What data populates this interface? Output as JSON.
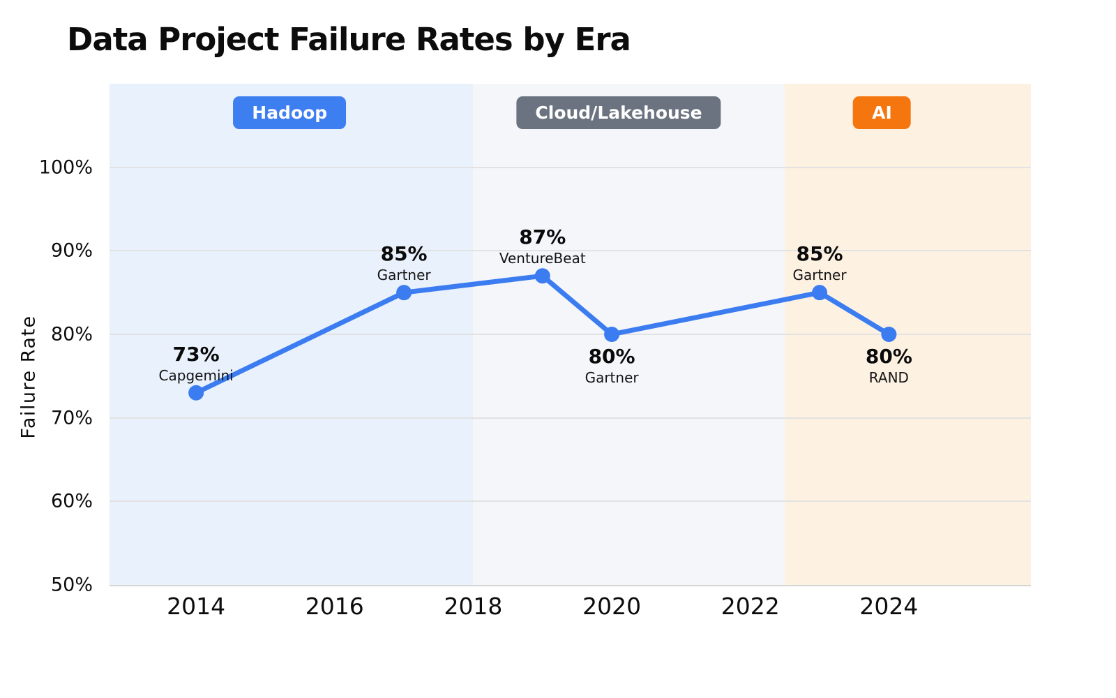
{
  "chart_data": {
    "type": "line",
    "title": "Data Project Failure Rates by Era",
    "xlabel": "",
    "ylabel": "Failure Rate",
    "xlim": [
      2012.75,
      2026.05
    ],
    "ylim": [
      50,
      110
    ],
    "yticks": [
      100,
      90,
      80,
      70,
      60,
      50
    ],
    "ytick_suffix": "%",
    "xticks": [
      2014,
      2016,
      2018,
      2020,
      2022,
      2024
    ],
    "grid": "horizontal",
    "legend": "none",
    "line_color": "#3b7cf0",
    "marker_radius": 11,
    "line_width": 7,
    "eras": [
      {
        "label": "Hadoop",
        "start": 2012.75,
        "end": 2018,
        "band_color": "#e9f1fc",
        "badge_color": "#3d7ef0",
        "badge_x": 2015.35
      },
      {
        "label": "Cloud/Lakehouse",
        "start": 2018,
        "end": 2022.5,
        "band_color": "#f4f6fa",
        "badge_color": "#6b7280",
        "badge_x": 2020.1
      },
      {
        "label": "AI",
        "start": 2022.5,
        "end": 2026.05,
        "band_color": "#fdf1e2",
        "badge_color": "#f5760e",
        "badge_x": 2023.9
      }
    ],
    "points": [
      {
        "x": 2014,
        "y": 73,
        "label": "73%",
        "source": "Capgemini",
        "label_pos": "above"
      },
      {
        "x": 2017,
        "y": 85,
        "label": "85%",
        "source": "Gartner",
        "label_pos": "above"
      },
      {
        "x": 2019,
        "y": 87,
        "label": "87%",
        "source": "VentureBeat",
        "label_pos": "above"
      },
      {
        "x": 2020,
        "y": 80,
        "label": "80%",
        "source": "Gartner",
        "label_pos": "below"
      },
      {
        "x": 2023,
        "y": 85,
        "label": "85%",
        "source": "Gartner",
        "label_pos": "above"
      },
      {
        "x": 2024,
        "y": 80,
        "label": "80%",
        "source": "RAND",
        "label_pos": "below"
      }
    ]
  }
}
